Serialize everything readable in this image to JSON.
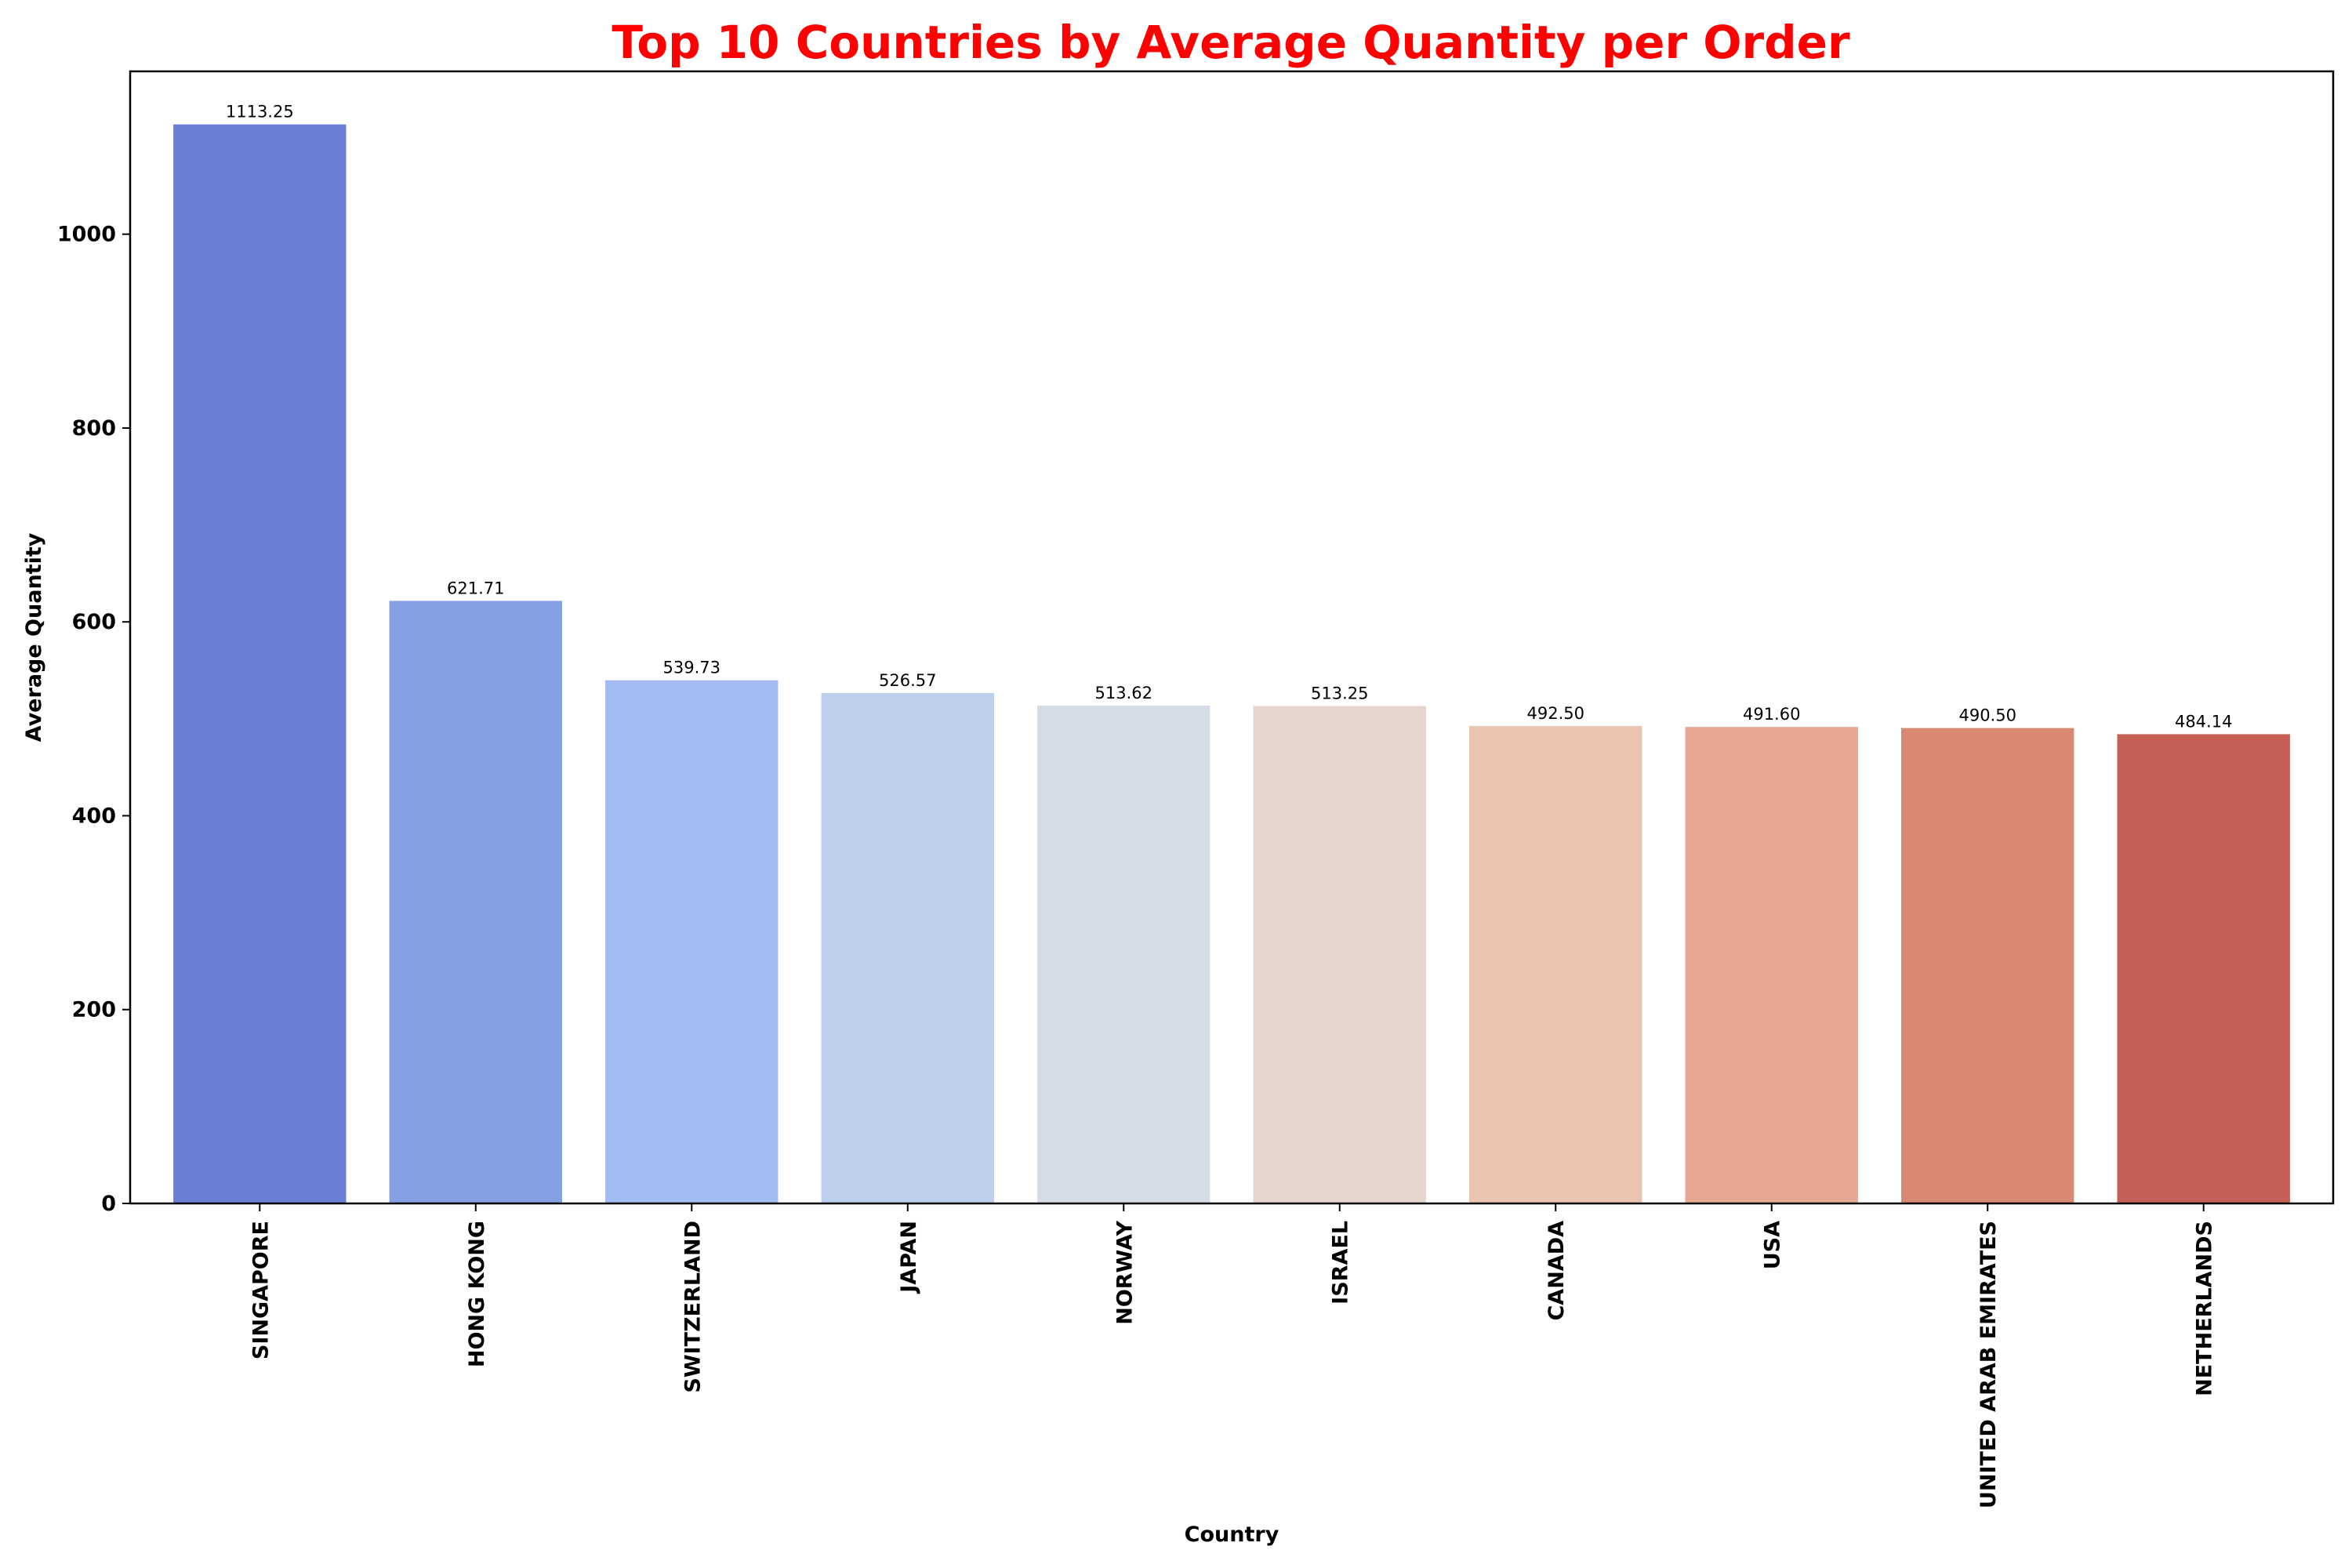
{
  "chart_data": {
    "type": "bar",
    "title": "Top 10 Countries by Average Quantity per Order",
    "title_color": "#ff0000",
    "xlabel": "Country",
    "ylabel": "Average Quantity",
    "ylim": [
      0,
      1168
    ],
    "yticks": [
      0,
      200,
      400,
      600,
      800,
      1000
    ],
    "ytick_labels": [
      "0",
      "200",
      "400",
      "600",
      "800",
      "1000"
    ],
    "grid": false,
    "categories": [
      "SINGAPORE",
      "HONG KONG",
      "SWITZERLAND",
      "JAPAN",
      "NORWAY",
      "ISRAEL",
      "CANADA",
      "USA",
      "UNITED ARAB EMIRATES",
      "NETHERLANDS"
    ],
    "values": [
      1113.25,
      621.71,
      539.73,
      526.57,
      513.62,
      513.25,
      492.5,
      491.6,
      490.5,
      484.14
    ],
    "value_labels": [
      "1113.25",
      "621.71",
      "539.73",
      "526.57",
      "513.62",
      "513.25",
      "492.50",
      "491.60",
      "490.50",
      "484.14"
    ],
    "colors": [
      "#6a7fd3",
      "#85a0e3",
      "#a2bbf0",
      "#bfd0ef",
      "#d6dce6",
      "#e4d6ce",
      "#eac4b0",
      "#e6a890",
      "#d98872",
      "#c46055"
    ]
  }
}
